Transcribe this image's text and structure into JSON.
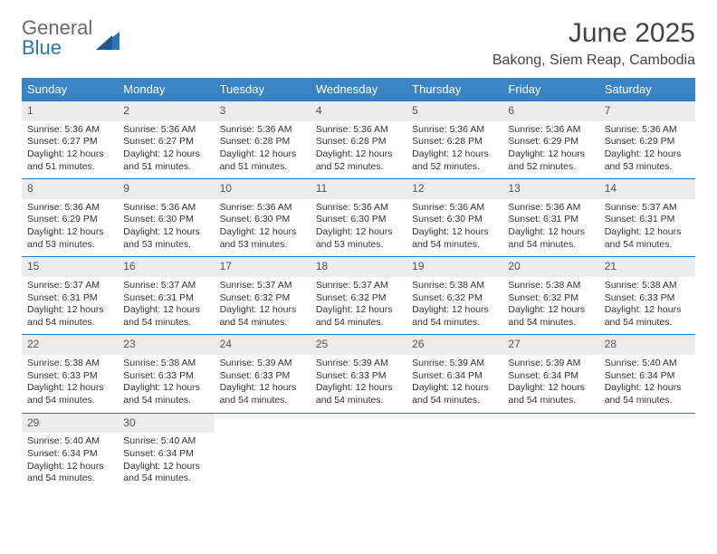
{
  "brand": {
    "part1": "General",
    "part2": "Blue"
  },
  "title": "June 2025",
  "location": "Bakong, Siem Reap, Cambodia",
  "colors": {
    "header_bg": "#3b84c4",
    "week_border": "#2f74b5",
    "daynum_bg": "#ececec",
    "brand_gray": "#6a6a6a",
    "brand_blue": "#2f74b5"
  },
  "day_headers": [
    "Sunday",
    "Monday",
    "Tuesday",
    "Wednesday",
    "Thursday",
    "Friday",
    "Saturday"
  ],
  "weeks": [
    [
      {
        "n": "1",
        "sr": "Sunrise: 5:36 AM",
        "ss": "Sunset: 6:27 PM",
        "d1": "Daylight: 12 hours",
        "d2": "and 51 minutes."
      },
      {
        "n": "2",
        "sr": "Sunrise: 5:36 AM",
        "ss": "Sunset: 6:27 PM",
        "d1": "Daylight: 12 hours",
        "d2": "and 51 minutes."
      },
      {
        "n": "3",
        "sr": "Sunrise: 5:36 AM",
        "ss": "Sunset: 6:28 PM",
        "d1": "Daylight: 12 hours",
        "d2": "and 51 minutes."
      },
      {
        "n": "4",
        "sr": "Sunrise: 5:36 AM",
        "ss": "Sunset: 6:28 PM",
        "d1": "Daylight: 12 hours",
        "d2": "and 52 minutes."
      },
      {
        "n": "5",
        "sr": "Sunrise: 5:36 AM",
        "ss": "Sunset: 6:28 PM",
        "d1": "Daylight: 12 hours",
        "d2": "and 52 minutes."
      },
      {
        "n": "6",
        "sr": "Sunrise: 5:36 AM",
        "ss": "Sunset: 6:29 PM",
        "d1": "Daylight: 12 hours",
        "d2": "and 52 minutes."
      },
      {
        "n": "7",
        "sr": "Sunrise: 5:36 AM",
        "ss": "Sunset: 6:29 PM",
        "d1": "Daylight: 12 hours",
        "d2": "and 53 minutes."
      }
    ],
    [
      {
        "n": "8",
        "sr": "Sunrise: 5:36 AM",
        "ss": "Sunset: 6:29 PM",
        "d1": "Daylight: 12 hours",
        "d2": "and 53 minutes."
      },
      {
        "n": "9",
        "sr": "Sunrise: 5:36 AM",
        "ss": "Sunset: 6:30 PM",
        "d1": "Daylight: 12 hours",
        "d2": "and 53 minutes."
      },
      {
        "n": "10",
        "sr": "Sunrise: 5:36 AM",
        "ss": "Sunset: 6:30 PM",
        "d1": "Daylight: 12 hours",
        "d2": "and 53 minutes."
      },
      {
        "n": "11",
        "sr": "Sunrise: 5:36 AM",
        "ss": "Sunset: 6:30 PM",
        "d1": "Daylight: 12 hours",
        "d2": "and 53 minutes."
      },
      {
        "n": "12",
        "sr": "Sunrise: 5:36 AM",
        "ss": "Sunset: 6:30 PM",
        "d1": "Daylight: 12 hours",
        "d2": "and 54 minutes."
      },
      {
        "n": "13",
        "sr": "Sunrise: 5:36 AM",
        "ss": "Sunset: 6:31 PM",
        "d1": "Daylight: 12 hours",
        "d2": "and 54 minutes."
      },
      {
        "n": "14",
        "sr": "Sunrise: 5:37 AM",
        "ss": "Sunset: 6:31 PM",
        "d1": "Daylight: 12 hours",
        "d2": "and 54 minutes."
      }
    ],
    [
      {
        "n": "15",
        "sr": "Sunrise: 5:37 AM",
        "ss": "Sunset: 6:31 PM",
        "d1": "Daylight: 12 hours",
        "d2": "and 54 minutes."
      },
      {
        "n": "16",
        "sr": "Sunrise: 5:37 AM",
        "ss": "Sunset: 6:31 PM",
        "d1": "Daylight: 12 hours",
        "d2": "and 54 minutes."
      },
      {
        "n": "17",
        "sr": "Sunrise: 5:37 AM",
        "ss": "Sunset: 6:32 PM",
        "d1": "Daylight: 12 hours",
        "d2": "and 54 minutes."
      },
      {
        "n": "18",
        "sr": "Sunrise: 5:37 AM",
        "ss": "Sunset: 6:32 PM",
        "d1": "Daylight: 12 hours",
        "d2": "and 54 minutes."
      },
      {
        "n": "19",
        "sr": "Sunrise: 5:38 AM",
        "ss": "Sunset: 6:32 PM",
        "d1": "Daylight: 12 hours",
        "d2": "and 54 minutes."
      },
      {
        "n": "20",
        "sr": "Sunrise: 5:38 AM",
        "ss": "Sunset: 6:32 PM",
        "d1": "Daylight: 12 hours",
        "d2": "and 54 minutes."
      },
      {
        "n": "21",
        "sr": "Sunrise: 5:38 AM",
        "ss": "Sunset: 6:33 PM",
        "d1": "Daylight: 12 hours",
        "d2": "and 54 minutes."
      }
    ],
    [
      {
        "n": "22",
        "sr": "Sunrise: 5:38 AM",
        "ss": "Sunset: 6:33 PM",
        "d1": "Daylight: 12 hours",
        "d2": "and 54 minutes."
      },
      {
        "n": "23",
        "sr": "Sunrise: 5:38 AM",
        "ss": "Sunset: 6:33 PM",
        "d1": "Daylight: 12 hours",
        "d2": "and 54 minutes."
      },
      {
        "n": "24",
        "sr": "Sunrise: 5:39 AM",
        "ss": "Sunset: 6:33 PM",
        "d1": "Daylight: 12 hours",
        "d2": "and 54 minutes."
      },
      {
        "n": "25",
        "sr": "Sunrise: 5:39 AM",
        "ss": "Sunset: 6:33 PM",
        "d1": "Daylight: 12 hours",
        "d2": "and 54 minutes."
      },
      {
        "n": "26",
        "sr": "Sunrise: 5:39 AM",
        "ss": "Sunset: 6:34 PM",
        "d1": "Daylight: 12 hours",
        "d2": "and 54 minutes."
      },
      {
        "n": "27",
        "sr": "Sunrise: 5:39 AM",
        "ss": "Sunset: 6:34 PM",
        "d1": "Daylight: 12 hours",
        "d2": "and 54 minutes."
      },
      {
        "n": "28",
        "sr": "Sunrise: 5:40 AM",
        "ss": "Sunset: 6:34 PM",
        "d1": "Daylight: 12 hours",
        "d2": "and 54 minutes."
      }
    ],
    [
      {
        "n": "29",
        "sr": "Sunrise: 5:40 AM",
        "ss": "Sunset: 6:34 PM",
        "d1": "Daylight: 12 hours",
        "d2": "and 54 minutes."
      },
      {
        "n": "30",
        "sr": "Sunrise: 5:40 AM",
        "ss": "Sunset: 6:34 PM",
        "d1": "Daylight: 12 hours",
        "d2": "and 54 minutes."
      },
      null,
      null,
      null,
      null,
      null
    ]
  ]
}
